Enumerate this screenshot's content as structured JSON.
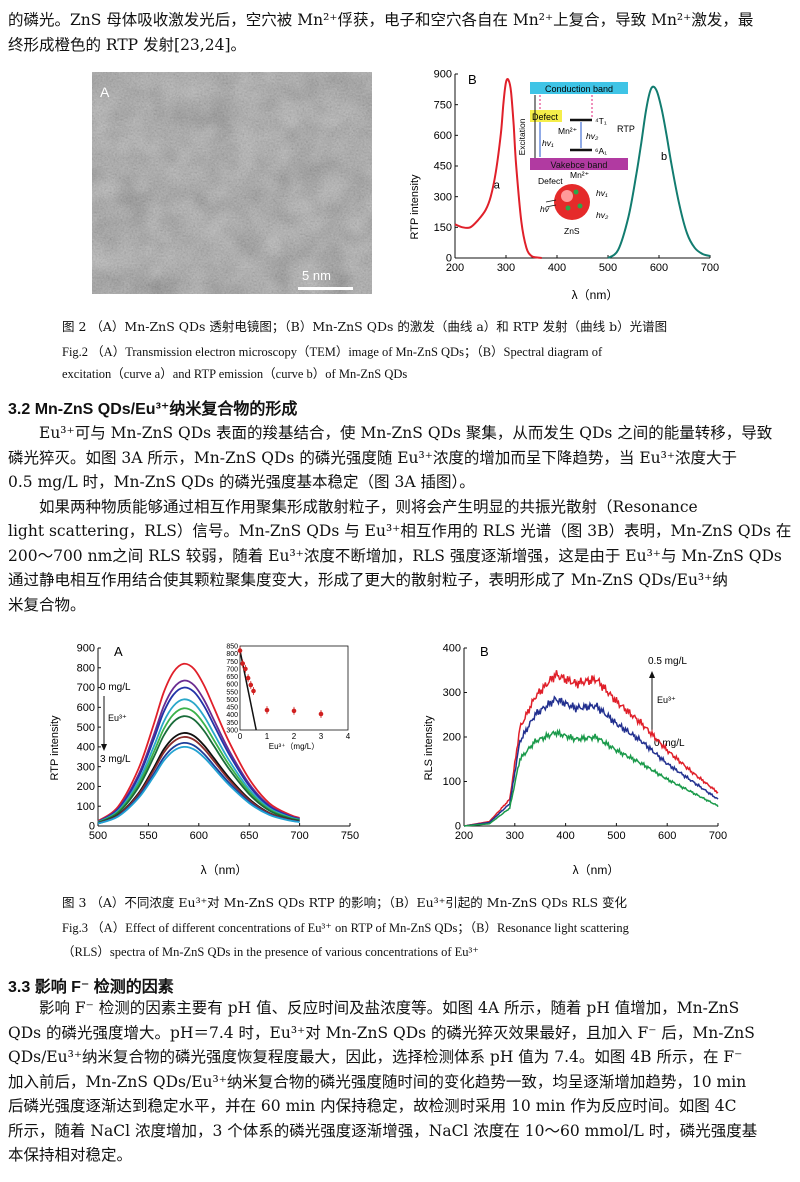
{
  "para_top": {
    "line1": "的磷光。ZnS 母体吸收激发光后，空穴被 Mn²⁺俘获，电子和空穴各自在 Mn²⁺上复合，导致 Mn²⁺激发，最",
    "line2": "终形成橙色的 RTP 发射[23,24]。"
  },
  "fig2": {
    "panel_a_label": "A",
    "scale_bar_label": "5 nm",
    "panel_b_label": "B",
    "cap_cn": "图 2 （A）Mn-ZnS QDs 透射电镜图；（B）Mn-ZnS QDs 的激发（曲线 a）和 RTP 发射（曲线 b）光谱图",
    "cap_en1": "Fig.2 （A）Transmission electron microscopy（TEM）image of Mn-ZnS QDs；（B）Spectral diagram of",
    "cap_en2": "excitation（curve a）and RTP emission（curve b）of Mn-ZnS QDs",
    "inset": {
      "conduction_band": "Conduction band",
      "valence_band": "Vakebce band",
      "defect": "Defect",
      "excitation": "Excitation",
      "mn2": "Mn²⁺",
      "t1": "⁴T₁",
      "a1": "⁶A₁",
      "hv1": "hv₁",
      "hv2": "hv₂",
      "rtp": "RTP",
      "defect2": "Defect",
      "mn2b": "Mn²⁺",
      "hv1b": "hv₁",
      "hv2b": "hv₂",
      "hv": "hv",
      "zns": "ZnS"
    },
    "curve_a_label": "a",
    "curve_b_label": "b"
  },
  "section32": {
    "heading": "3.2  Mn-ZnS QDs/Eu³⁺纳米复合物的形成",
    "para1_l1": "Eu³⁺可与 Mn-ZnS QDs 表面的羧基结合，使 Mn-ZnS QDs 聚集，从而发生 QDs 之间的能量转移，导致",
    "para1_l2": "磷光猝灭。如图 3A 所示，Mn-ZnS QDs 的磷光强度随 Eu³⁺浓度的增加而呈下降趋势，当 Eu³⁺浓度大于",
    "para1_l3": "0.5 mg/L 时，Mn-ZnS QDs 的磷光强度基本稳定（图 3A 插图）。",
    "para2_l1": "如果两种物质能够通过相互作用聚集形成散射粒子，则将会产生明显的共振光散射（Resonance",
    "para2_l2": "light scattering，RLS）信号。Mn-ZnS QDs 与 Eu³⁺相互作用的 RLS 光谱（图 3B）表明，Mn-ZnS QDs 在",
    "para2_l3": "200～700 nm之间 RLS 较弱，随着 Eu³⁺浓度不断增加，RLS 强度逐渐增强，这是由于 Eu³⁺与 Mn-ZnS QDs",
    "para2_l4": "通过静电相互作用结合使其颗粒聚集度变大，形成了更大的散射粒子，表明形成了 Mn-ZnS QDs/Eu³⁺纳",
    "para2_l5": "米复合物。"
  },
  "fig3": {
    "panel_a_label": "A",
    "panel_b_label": "B",
    "a_top": "0  mg/L",
    "a_mid": "Eu³⁺",
    "a_bot": "3  mg/L",
    "b_top": "0.5 mg/L",
    "b_mid": "Eu³⁺",
    "b_bot": "0 mg/L",
    "cap_cn": "图 3 （A）不同浓度 Eu³⁺对 Mn-ZnS QDs RTP 的影响；（B）Eu³⁺引起的 Mn-ZnS QDs RLS 变化",
    "cap_en1": "Fig.3 （A）Effect of different concentrations of Eu³⁺ on RTP of Mn-ZnS QDs；（B）Resonance light scattering",
    "cap_en2": "（RLS）spectra of Mn-ZnS QDs in the presence of various concentrations of Eu³⁺"
  },
  "section33": {
    "heading": "3.3  影响 F⁻ 检测的因素",
    "l1": "影响 F⁻ 检测的因素主要有 pH 值、反应时间及盐浓度等。如图 4A 所示，随着 pH 值增加，Mn-ZnS",
    "l2": "QDs 的磷光强度增大。pH＝7.4 时，Eu³⁺对 Mn-ZnS QDs 的磷光猝灭效果最好，且加入 F⁻ 后，Mn-ZnS",
    "l3": "QDs/Eu³⁺纳米复合物的磷光强度恢复程度最大，因此，选择检测体系 pH 值为 7.4。如图 4B 所示，在 F⁻",
    "l4": "加入前后，Mn-ZnS QDs/Eu³⁺纳米复合物的磷光强度随时间的变化趋势一致，均呈逐渐增加趋势，10 min",
    "l5": "后磷光强度逐渐达到稳定水平，并在 60 min 内保持稳定，故检测时采用 10 min 作为反应时间。如图 4C",
    "l6": "所示，随着 NaCl 浓度增加，3 个体系的磷光强度逐渐增强，NaCl 浓度在 10～60 mmol/L 时，磷光强度基",
    "l7": "本保持相对稳定。"
  },
  "chart_data": [
    {
      "type": "line",
      "panel": "Fig.2B",
      "xlabel": "λ（nm）",
      "ylabel": "RTP  intensity",
      "xlim": [
        200,
        700
      ],
      "ylim": [
        0,
        900
      ],
      "xticks": [
        200,
        300,
        400,
        500,
        600,
        700
      ],
      "yticks": [
        0,
        150,
        300,
        450,
        600,
        750,
        900
      ],
      "series": [
        {
          "name": "a",
          "color": "#e0202a",
          "x": [
            200,
            215,
            230,
            245,
            260,
            270,
            280,
            290,
            295,
            300,
            305,
            310,
            315,
            320,
            330,
            340,
            350,
            360,
            370
          ],
          "y": [
            165,
            150,
            150,
            185,
            235,
            300,
            420,
            610,
            760,
            860,
            870,
            810,
            650,
            450,
            180,
            50,
            10,
            3,
            0
          ]
        },
        {
          "name": "b",
          "color": "#127c70",
          "x": [
            500,
            520,
            540,
            555,
            565,
            575,
            585,
            595,
            605,
            615,
            625,
            640,
            655,
            670,
            685,
            700
          ],
          "y": [
            0,
            40,
            200,
            400,
            560,
            730,
            830,
            820,
            730,
            600,
            450,
            260,
            120,
            50,
            20,
            10
          ]
        }
      ]
    },
    {
      "type": "line",
      "panel": "Fig.3A",
      "xlabel": "λ（nm）",
      "ylabel": "RTP  intensity",
      "xlim": [
        500,
        750
      ],
      "ylim": [
        0,
        900
      ],
      "xticks": [
        500,
        550,
        600,
        650,
        700,
        750
      ],
      "yticks": [
        0,
        100,
        200,
        300,
        400,
        500,
        600,
        700,
        800,
        900
      ],
      "series_peaks": [
        820,
        735,
        700,
        640,
        595,
        555,
        470,
        450,
        420,
        400
      ],
      "series_colors": [
        "#e0202a",
        "#6a2c91",
        "#2233a8",
        "#2aa7c9",
        "#3bb24a",
        "#1a6c3a",
        "#101010",
        "#8a2c2c",
        "#1e3e9a",
        "#22a2d2"
      ],
      "inset": {
        "xlabel": "Eu³⁺（mg/L）",
        "xlim": [
          0,
          4
        ],
        "ylim": [
          300,
          850
        ],
        "xticks": [
          0,
          1,
          2,
          3,
          4
        ],
        "yticks": [
          300,
          350,
          400,
          450,
          500,
          550,
          600,
          650,
          700,
          750,
          800,
          850
        ],
        "x": [
          0,
          0.1,
          0.2,
          0.3,
          0.4,
          0.5,
          1,
          2,
          3
        ],
        "y": [
          820,
          735,
          700,
          640,
          595,
          555,
          430,
          425,
          405
        ]
      }
    },
    {
      "type": "line",
      "panel": "Fig.3B",
      "xlabel": "λ（nm）",
      "ylabel": "RLS  intensity",
      "xlim": [
        200,
        700
      ],
      "ylim": [
        0,
        400
      ],
      "xticks": [
        200,
        300,
        400,
        500,
        600,
        700
      ],
      "yticks": [
        0,
        100,
        200,
        300,
        400
      ],
      "series": [
        {
          "color": "#e0202a",
          "x": [
            200,
            250,
            290,
            310,
            340,
            380,
            420,
            460,
            500,
            550,
            600,
            650,
            700
          ],
          "y": [
            0,
            10,
            60,
            220,
            290,
            340,
            320,
            330,
            280,
            230,
            170,
            120,
            75
          ]
        },
        {
          "color": "#22308f",
          "x": [
            200,
            250,
            290,
            310,
            340,
            380,
            420,
            460,
            500,
            550,
            600,
            650,
            700
          ],
          "y": [
            0,
            8,
            50,
            190,
            250,
            285,
            265,
            270,
            230,
            190,
            140,
            100,
            60
          ]
        },
        {
          "color": "#1a9a4a",
          "x": [
            200,
            250,
            290,
            310,
            340,
            380,
            420,
            460,
            500,
            550,
            600,
            650,
            700
          ],
          "y": [
            0,
            5,
            40,
            150,
            190,
            210,
            195,
            200,
            170,
            140,
            105,
            75,
            45
          ]
        }
      ]
    }
  ]
}
